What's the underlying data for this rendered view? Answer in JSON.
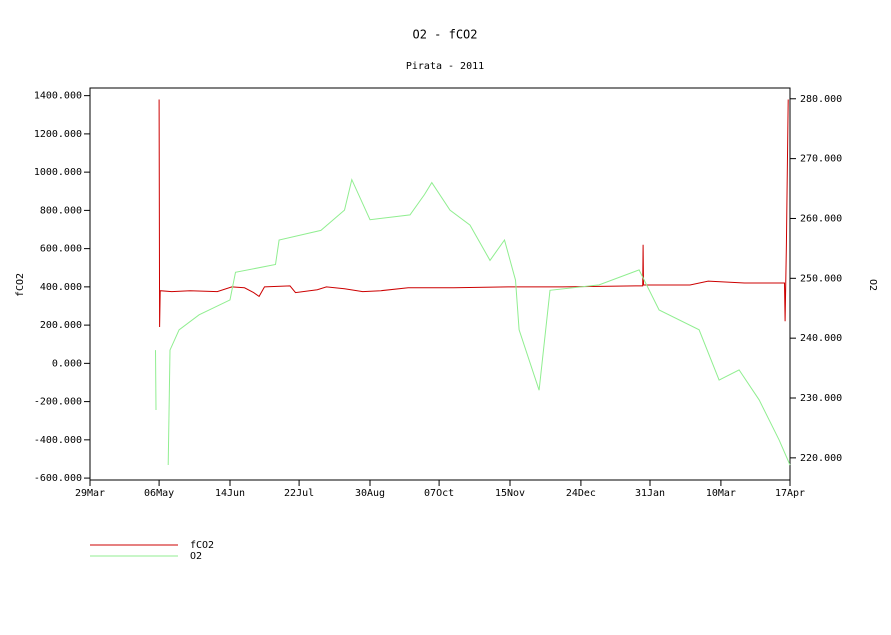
{
  "chart_data": {
    "type": "line",
    "title": "O2 - fCO2",
    "subtitle": "Pirata - 2011",
    "y_label": "fCO2",
    "y2_label": "O2",
    "xlim": [
      0,
      385
    ],
    "xticks": [
      {
        "value": 0,
        "label": "29Mar"
      },
      {
        "value": 38,
        "label": "06May"
      },
      {
        "value": 77,
        "label": "14Jun"
      },
      {
        "value": 115,
        "label": "22Jul"
      },
      {
        "value": 154,
        "label": "30Aug"
      },
      {
        "value": 192,
        "label": "07Oct"
      },
      {
        "value": 231,
        "label": "15Nov"
      },
      {
        "value": 270,
        "label": "24Dec"
      },
      {
        "value": 308,
        "label": "31Jan"
      },
      {
        "value": 347,
        "label": "10Mar"
      },
      {
        "value": 385,
        "label": "17Apr"
      }
    ],
    "ylim": [
      -610,
      1440
    ],
    "yticks": [
      {
        "value": -600,
        "label": "-600.000"
      },
      {
        "value": -400,
        "label": "-400.000"
      },
      {
        "value": -200,
        "label": "-200.000"
      },
      {
        "value": 0,
        "label": "0.000"
      },
      {
        "value": 200,
        "label": "200.000"
      },
      {
        "value": 400,
        "label": "400.000"
      },
      {
        "value": 600,
        "label": "600.000"
      },
      {
        "value": 800,
        "label": "800.000"
      },
      {
        "value": 1000,
        "label": "1000.000"
      },
      {
        "value": 1200,
        "label": "1200.000"
      },
      {
        "value": 1400,
        "label": "1400.000"
      }
    ],
    "y2lim": [
      216.3,
      281.8
    ],
    "y2ticks": [
      {
        "value": 220,
        "label": "220.000"
      },
      {
        "value": 230,
        "label": "230.000"
      },
      {
        "value": 240,
        "label": "240.000"
      },
      {
        "value": 250,
        "label": "250.000"
      },
      {
        "value": 260,
        "label": "260.000"
      },
      {
        "value": 270,
        "label": "270.000"
      },
      {
        "value": 280,
        "label": "280.000"
      }
    ],
    "series": [
      {
        "name": "fCO2",
        "color": "#cc0000",
        "x": [
          38,
          38.3,
          38.6,
          45,
          55,
          70,
          78,
          85,
          90,
          93,
          96,
          110,
          113,
          125,
          130,
          140,
          150,
          160,
          175,
          200,
          230,
          260,
          300,
          304,
          304.2,
          304.4,
          330,
          340,
          360,
          382,
          382.3,
          383,
          384
        ],
        "values": [
          1380,
          190,
          380,
          375,
          380,
          375,
          400,
          395,
          370,
          350,
          400,
          405,
          370,
          385,
          400,
          390,
          375,
          380,
          395,
          395,
          400,
          400,
          405,
          405,
          620,
          410,
          410,
          430,
          420,
          420,
          220,
          620,
          1380
        ]
      },
      {
        "name": "O2",
        "color": "#90ee90",
        "axis": "y2",
        "x": [
          36,
          36.3,
          40,
          43,
          44,
          49,
          60,
          77,
          80,
          102,
          104,
          127,
          140,
          144,
          154,
          176,
          184,
          188,
          198,
          209,
          220,
          228,
          234,
          236,
          247,
          253,
          280,
          302,
          313,
          335,
          346,
          357,
          368,
          379,
          385
        ],
        "values": [
          238,
          228,
          null,
          218.8,
          238,
          241.4,
          243.9,
          246.4,
          251,
          252.3,
          256.4,
          258,
          261.4,
          266.5,
          259.8,
          260.6,
          264,
          266,
          261.4,
          258.9,
          253,
          256.4,
          249.7,
          241.4,
          231.3,
          248,
          248.9,
          251.4,
          244.7,
          241.4,
          233,
          234.7,
          229.7,
          223,
          218.8
        ]
      }
    ]
  }
}
